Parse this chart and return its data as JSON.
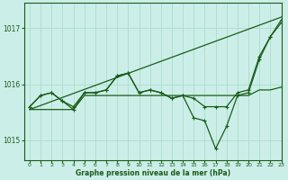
{
  "title": "Graphe pression niveau de la mer (hPa)",
  "bg_color": "#cceee8",
  "grid_color": "#aaddcc",
  "line_color": "#1a5c1a",
  "xlim": [
    -0.5,
    23
  ],
  "ylim": [
    1014.65,
    1017.45
  ],
  "yticks": [
    1015,
    1016,
    1017
  ],
  "xticks": [
    0,
    1,
    2,
    3,
    4,
    5,
    6,
    7,
    8,
    9,
    10,
    11,
    12,
    13,
    14,
    15,
    16,
    17,
    18,
    19,
    20,
    21,
    22,
    23
  ],
  "trend_line": [
    1015.55,
    1017.2
  ],
  "trend_x": [
    0,
    23
  ],
  "series_main": [
    1015.6,
    1015.8,
    1015.85,
    1015.7,
    1015.6,
    1015.85,
    1015.85,
    1015.9,
    1016.15,
    1016.2,
    1015.85,
    1015.9,
    1015.85,
    1015.75,
    1015.8,
    1015.75,
    1015.6,
    1015.6,
    1015.6,
    1015.85,
    1015.9,
    1016.5,
    1016.85,
    1017.1
  ],
  "series_low": [
    1015.6,
    1015.8,
    1015.85,
    1015.7,
    1015.55,
    1015.85,
    1015.85,
    1015.9,
    1016.15,
    1016.2,
    1015.85,
    1015.9,
    1015.85,
    1015.75,
    1015.8,
    1015.4,
    1015.35,
    1014.85,
    1015.25,
    1015.8,
    1015.85,
    1016.45,
    1016.85,
    1017.15
  ],
  "series_flat": [
    1015.55,
    1015.55,
    1015.55,
    1015.55,
    1015.55,
    1015.8,
    1015.8,
    1015.8,
    1015.8,
    1015.8,
    1015.8,
    1015.8,
    1015.8,
    1015.8,
    1015.8,
    1015.8,
    1015.8,
    1015.8,
    1015.8,
    1015.8,
    1015.8,
    1015.9,
    1015.9,
    1015.95
  ]
}
